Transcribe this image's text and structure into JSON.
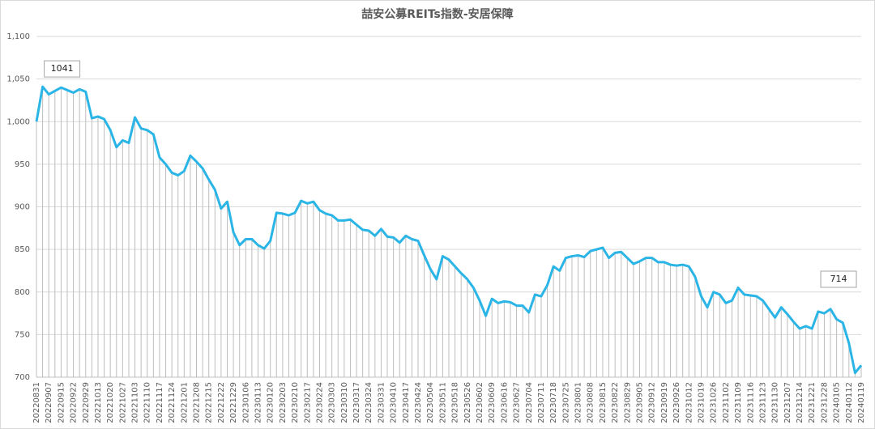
{
  "chart_data": {
    "type": "line",
    "title": "喆安公募REITs指数-安居保障",
    "categories": [
      "20220831",
      null,
      "20220907",
      null,
      "20220915",
      null,
      "20220922",
      null,
      "20220929",
      null,
      "20221013",
      null,
      "20221020",
      null,
      "20221027",
      null,
      "20221103",
      null,
      "20221110",
      null,
      "20221117",
      null,
      "20221124",
      null,
      "20221201",
      null,
      "20221208",
      null,
      "20221215",
      null,
      "20221222",
      null,
      "20221229",
      null,
      "20230106",
      null,
      "20230113",
      null,
      "20230120",
      null,
      "20230203",
      null,
      "20230210",
      null,
      "20230217",
      null,
      "20230224",
      null,
      "20230303",
      null,
      "20230310",
      null,
      "20230317",
      null,
      "20230324",
      null,
      "20230331",
      null,
      "20230410",
      null,
      "20230417",
      null,
      "20230424",
      null,
      "20230504",
      null,
      "20230511",
      null,
      "20230518",
      null,
      "20230526",
      null,
      "20230602",
      null,
      "20230609",
      null,
      "20230616",
      null,
      "20230627",
      null,
      "20230704",
      null,
      "20230711",
      null,
      "20230718",
      null,
      "20230725",
      null,
      "20230801",
      null,
      "20230808",
      null,
      "20230815",
      null,
      "20230822",
      null,
      "20230829",
      null,
      "20230905",
      null,
      "20230912",
      null,
      "20230919",
      null,
      "20230926",
      null,
      "20231012",
      null,
      "20231019",
      null,
      "20231026",
      null,
      "20231102",
      null,
      "20231109",
      null,
      "20231116",
      null,
      "20231123",
      null,
      "20231130",
      null,
      "20231207",
      null,
      "20231214",
      null,
      "20231221",
      null,
      "20231228",
      null,
      "20240105",
      null,
      "20240112",
      null,
      "20240119"
    ],
    "values": [
      1000,
      1041,
      1032,
      1036,
      1040,
      1037,
      1034,
      1038,
      1035,
      1004,
      1006,
      1003,
      990,
      970,
      978,
      975,
      1005,
      992,
      990,
      985,
      958,
      950,
      940,
      937,
      942,
      960,
      953,
      945,
      932,
      920,
      898,
      906,
      870,
      855,
      862,
      862,
      855,
      851,
      860,
      893,
      892,
      890,
      893,
      907,
      904,
      906,
      896,
      892,
      890,
      884,
      884,
      885,
      879,
      873,
      872,
      866,
      874,
      865,
      864,
      858,
      866,
      862,
      860,
      843,
      827,
      815,
      842,
      838,
      830,
      822,
      815,
      805,
      790,
      772,
      792,
      787,
      789,
      788,
      784,
      784,
      776,
      797,
      795,
      808,
      830,
      825,
      840,
      842,
      843,
      841,
      848,
      850,
      852,
      840,
      846,
      847,
      840,
      833,
      836,
      840,
      840,
      835,
      835,
      832,
      831,
      832,
      830,
      818,
      795,
      782,
      800,
      797,
      787,
      790,
      805,
      797,
      796,
      795,
      790,
      780,
      770,
      782,
      774,
      765,
      757,
      760,
      757,
      777,
      775,
      780,
      768,
      764,
      740,
      705,
      714
    ],
    "value_labels": [
      null,
      "1041",
      null,
      null,
      null,
      null,
      null,
      null,
      null,
      null,
      null,
      null,
      null,
      null,
      null,
      null,
      null,
      null,
      null,
      null,
      null,
      null,
      null,
      null,
      null,
      null,
      null,
      null,
      null,
      null,
      null,
      null,
      null,
      null,
      null,
      null,
      null,
      null,
      null,
      null,
      null,
      null,
      null,
      null,
      null,
      null,
      null,
      null,
      null,
      null,
      null,
      null,
      null,
      null,
      null,
      null,
      null,
      null,
      null,
      null,
      null,
      null,
      null,
      null,
      null,
      null,
      null,
      null,
      null,
      null,
      null,
      null,
      null,
      null,
      null,
      null,
      null,
      null,
      null,
      null,
      null,
      null,
      null,
      null,
      null,
      null,
      null,
      null,
      null,
      null,
      null,
      null,
      null,
      null,
      null,
      null,
      null,
      null,
      null,
      null,
      null,
      null,
      null,
      null,
      null,
      null,
      null,
      null,
      null,
      null,
      null,
      null,
      null,
      null,
      null,
      null,
      null,
      null,
      null,
      null,
      null,
      null,
      null,
      null,
      null,
      null,
      null,
      null,
      null,
      null,
      null,
      null,
      null,
      null,
      "714"
    ],
    "color": "#2bb5e6",
    "drop_color": "#bdbdbd",
    "ylim": [
      700,
      1100
    ],
    "yticks": [
      700,
      750,
      800,
      850,
      900,
      950,
      {
        "value": 1000,
        "label": "1,000"
      },
      {
        "value": 1050,
        "label": "1,050"
      },
      {
        "value": 1100,
        "label": "1,100"
      }
    ],
    "grid": true
  }
}
